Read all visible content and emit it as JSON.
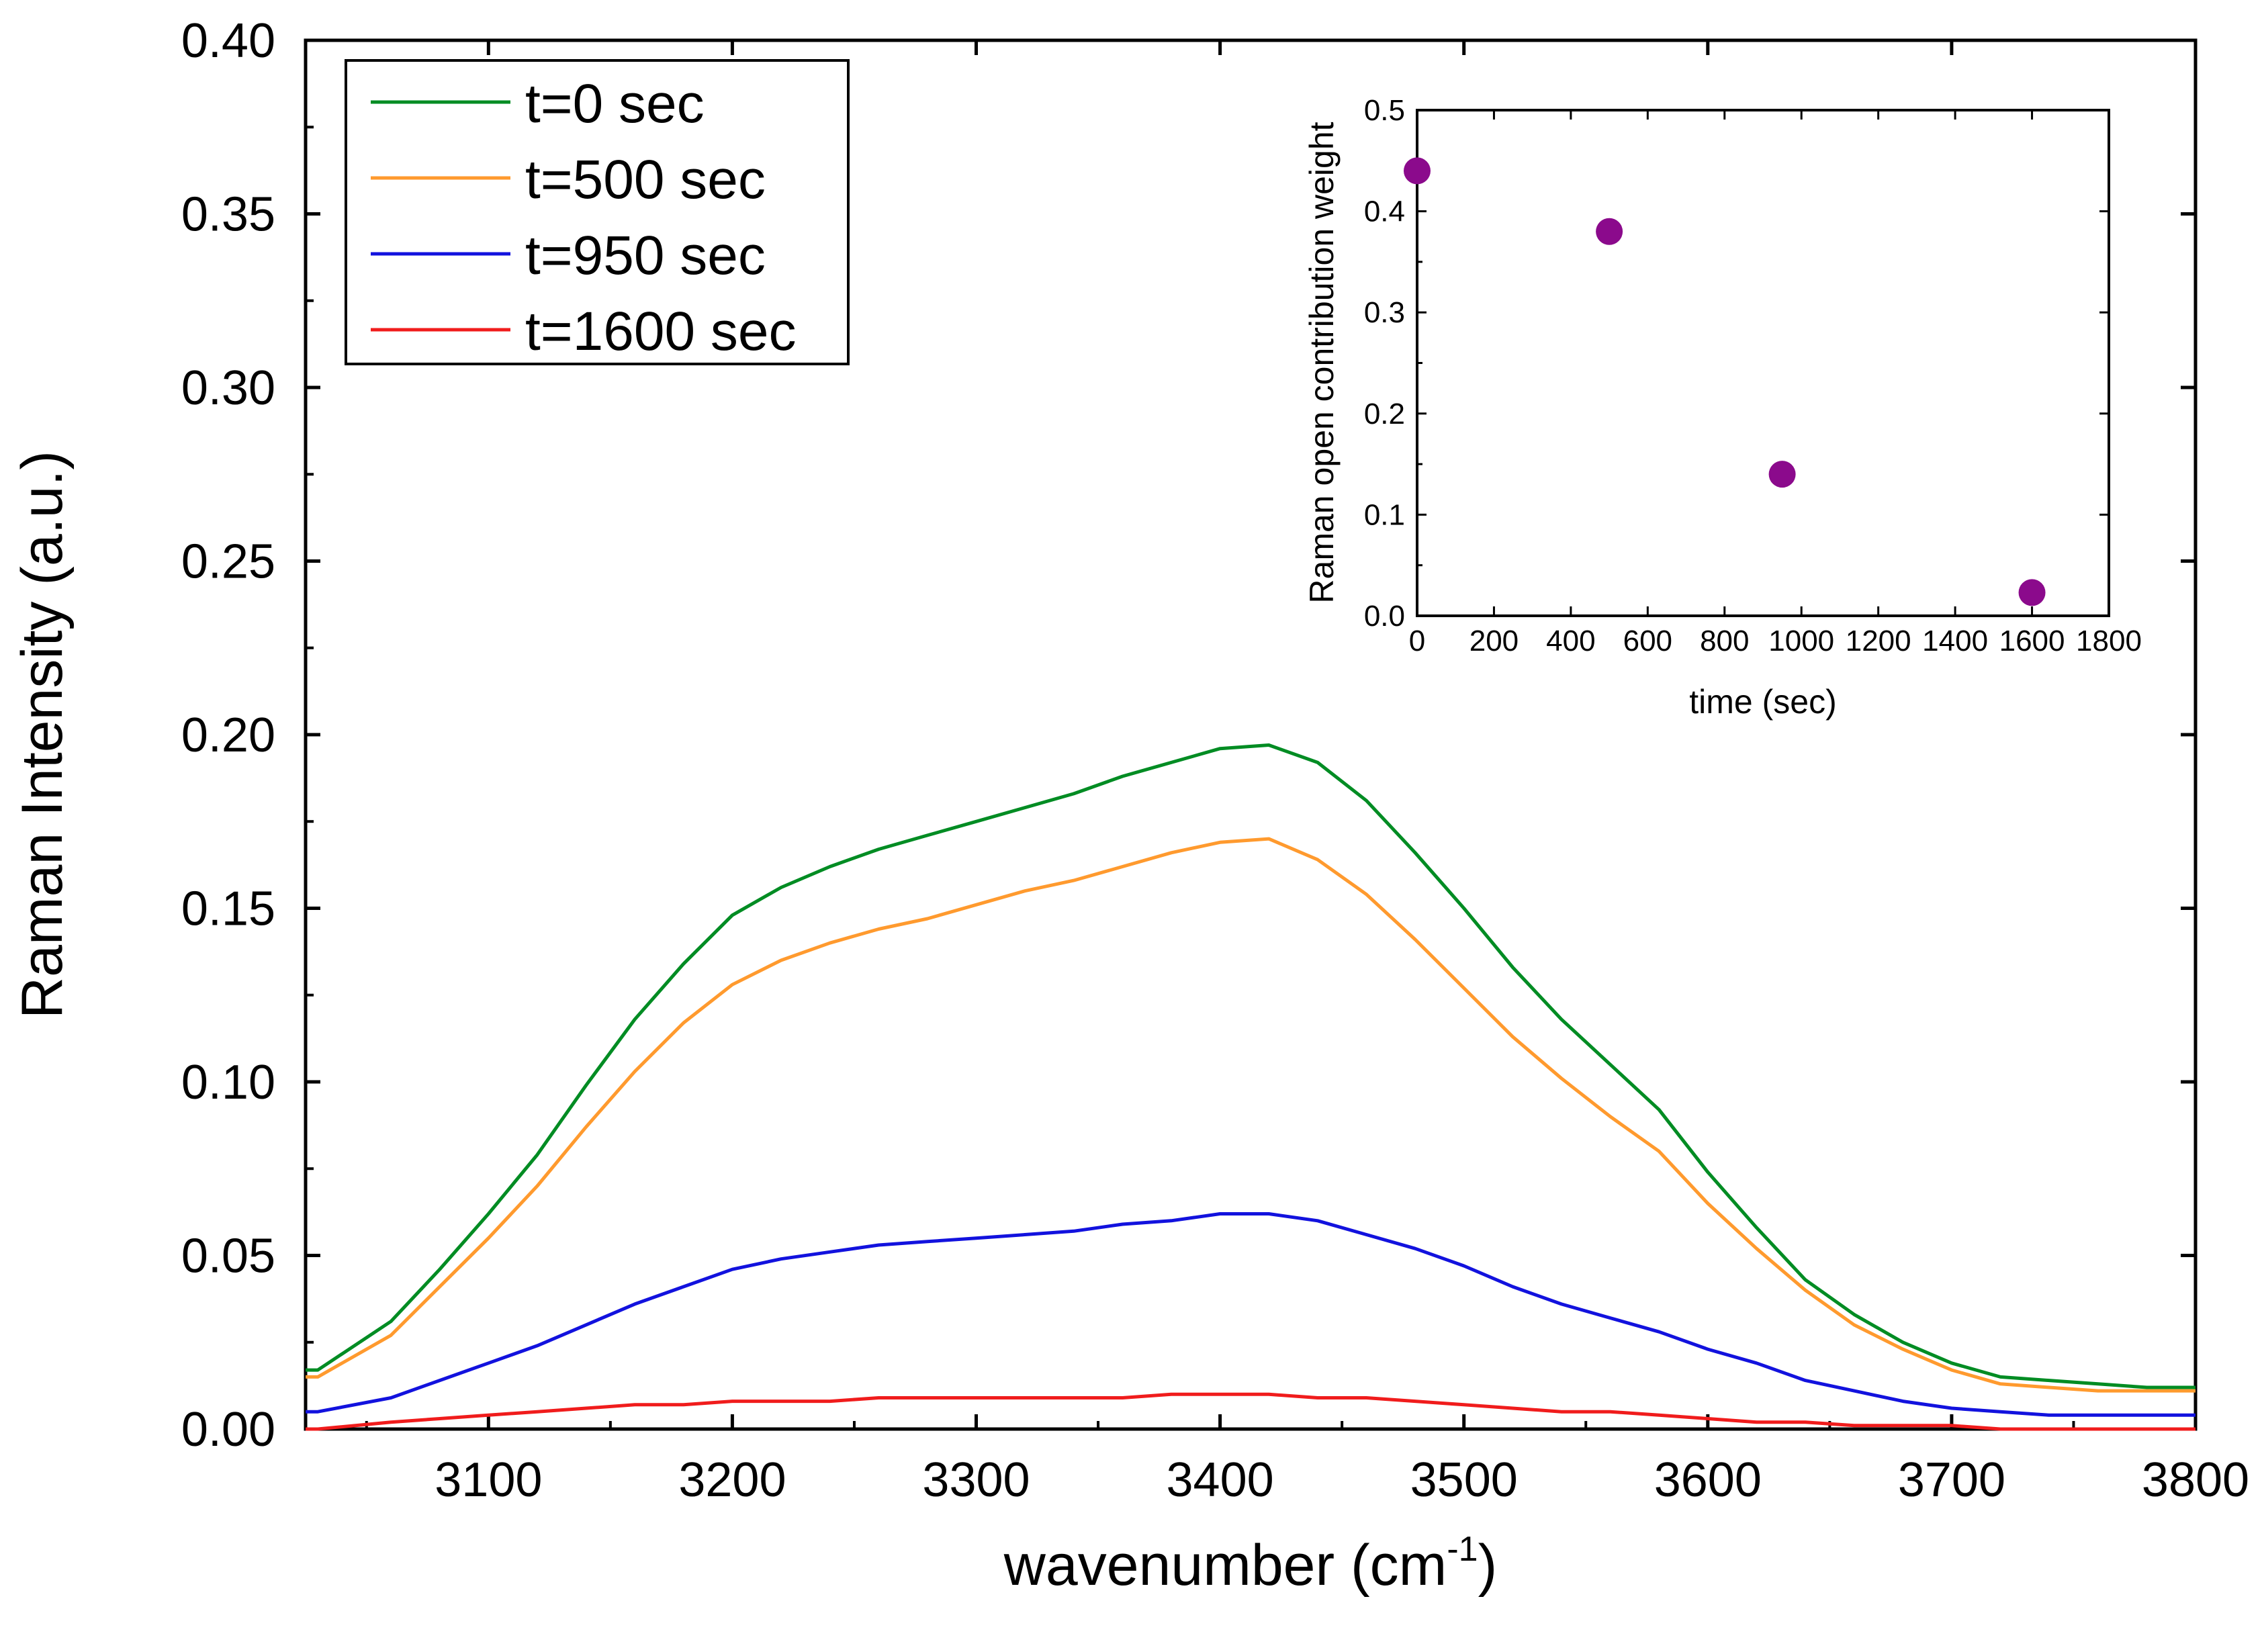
{
  "chart_data": [
    {
      "type": "line",
      "xlabel": "wavenumber (cm",
      "xlabel_sup": "-1",
      "xlabel_end": ")",
      "ylabel": "Raman Intensity (a.u.)",
      "xlim": [
        3025,
        3800
      ],
      "ylim": [
        0,
        0.4
      ],
      "xticks": [
        3100,
        3200,
        3300,
        3400,
        3500,
        3600,
        3700,
        3800
      ],
      "xtick_labels": [
        "3100",
        "3200",
        "3300",
        "3400",
        "3500",
        "3600",
        "3700",
        "3800"
      ],
      "yticks": [
        0,
        0.05,
        0.1,
        0.15,
        0.2,
        0.25,
        0.3,
        0.35,
        0.4
      ],
      "ytick_labels": [
        "0.00",
        "0.05",
        "0.10",
        "0.15",
        "0.20",
        "0.25",
        "0.30",
        "0.35",
        "0.40"
      ],
      "legend_position": "top-left",
      "grid": false,
      "x": [
        3025,
        3030,
        3060,
        3080,
        3100,
        3120,
        3140,
        3160,
        3180,
        3200,
        3220,
        3240,
        3260,
        3280,
        3300,
        3320,
        3340,
        3360,
        3380,
        3400,
        3420,
        3440,
        3460,
        3480,
        3500,
        3520,
        3540,
        3560,
        3580,
        3600,
        3620,
        3640,
        3660,
        3680,
        3700,
        3720,
        3740,
        3760,
        3780,
        3800
      ],
      "series": [
        {
          "name": "t=0 sec",
          "color": "#008C23",
          "values": [
            0.017,
            0.017,
            0.031,
            0.046,
            0.062,
            0.079,
            0.099,
            0.118,
            0.134,
            0.148,
            0.156,
            0.162,
            0.167,
            0.171,
            0.175,
            0.179,
            0.183,
            0.188,
            0.192,
            0.196,
            0.197,
            0.192,
            0.181,
            0.166,
            0.15,
            0.133,
            0.118,
            0.105,
            0.092,
            0.074,
            0.058,
            0.043,
            0.033,
            0.025,
            0.019,
            0.015,
            0.014,
            0.013,
            0.012,
            0.012
          ]
        },
        {
          "name": "t=500 sec",
          "color": "#FF9A2E",
          "values": [
            0.015,
            0.015,
            0.027,
            0.041,
            0.055,
            0.07,
            0.087,
            0.103,
            0.117,
            0.128,
            0.135,
            0.14,
            0.144,
            0.147,
            0.151,
            0.155,
            0.158,
            0.162,
            0.166,
            0.169,
            0.17,
            0.164,
            0.154,
            0.141,
            0.127,
            0.113,
            0.101,
            0.09,
            0.08,
            0.065,
            0.052,
            0.04,
            0.03,
            0.023,
            0.017,
            0.013,
            0.012,
            0.011,
            0.011,
            0.011
          ]
        },
        {
          "name": "t=950 sec",
          "color": "#1212DE",
          "values": [
            0.005,
            0.005,
            0.009,
            0.014,
            0.019,
            0.024,
            0.03,
            0.036,
            0.041,
            0.046,
            0.049,
            0.051,
            0.053,
            0.054,
            0.055,
            0.056,
            0.057,
            0.059,
            0.06,
            0.062,
            0.062,
            0.06,
            0.056,
            0.052,
            0.047,
            0.041,
            0.036,
            0.032,
            0.028,
            0.023,
            0.019,
            0.014,
            0.011,
            0.008,
            0.006,
            0.005,
            0.004,
            0.004,
            0.004,
            0.004
          ]
        },
        {
          "name": "t=1600 sec",
          "color": "#F01C1C",
          "values": [
            0.0,
            0.0,
            0.002,
            0.003,
            0.004,
            0.005,
            0.006,
            0.007,
            0.007,
            0.008,
            0.008,
            0.008,
            0.009,
            0.009,
            0.009,
            0.009,
            0.009,
            0.009,
            0.01,
            0.01,
            0.01,
            0.009,
            0.009,
            0.008,
            0.007,
            0.006,
            0.005,
            0.005,
            0.004,
            0.003,
            0.002,
            0.002,
            0.001,
            0.001,
            0.001,
            0.0,
            0.0,
            0.0,
            0.0,
            0.0
          ]
        }
      ]
    },
    {
      "type": "scatter",
      "xlabel": "time (sec)",
      "ylabel": "Raman open contribution weight",
      "xlim": [
        0,
        1800
      ],
      "ylim": [
        0,
        0.5
      ],
      "xticks": [
        0,
        200,
        400,
        600,
        800,
        1000,
        1200,
        1400,
        1600,
        1800
      ],
      "xtick_labels": [
        "0",
        "200",
        "400",
        "600",
        "800",
        "1000",
        "1200",
        "1400",
        "1600",
        "1800"
      ],
      "yticks": [
        0,
        0.1,
        0.2,
        0.3,
        0.4,
        0.5
      ],
      "ytick_labels": [
        "0.0",
        "0.1",
        "0.2",
        "0.3",
        "0.4",
        "0.5"
      ],
      "marker_color": "#8B0A8C",
      "x": [
        0,
        500,
        950,
        1600
      ],
      "y": [
        0.44,
        0.38,
        0.14,
        0.023
      ]
    }
  ]
}
